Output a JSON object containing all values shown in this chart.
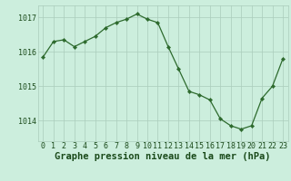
{
  "hours": [
    0,
    1,
    2,
    3,
    4,
    5,
    6,
    7,
    8,
    9,
    10,
    11,
    12,
    13,
    14,
    15,
    16,
    17,
    18,
    19,
    20,
    21,
    22,
    23
  ],
  "pressure": [
    1015.85,
    1016.3,
    1016.35,
    1016.15,
    1016.3,
    1016.45,
    1016.7,
    1016.85,
    1016.95,
    1017.1,
    1016.95,
    1016.85,
    1016.15,
    1015.5,
    1014.85,
    1014.75,
    1014.6,
    1014.05,
    1013.85,
    1013.75,
    1013.85,
    1014.65,
    1015.0,
    1015.8
  ],
  "line_color": "#2d6a2d",
  "marker_color": "#2d6a2d",
  "bg_color": "#cceedd",
  "grid_color": "#aaccbb",
  "xlabel": "Graphe pression niveau de la mer (hPa)",
  "xlabel_color": "#1a4a1a",
  "tick_color": "#1a4a1a",
  "ylim": [
    1013.4,
    1017.35
  ],
  "yticks": [
    1014,
    1015,
    1016,
    1017
  ],
  "xticks": [
    0,
    1,
    2,
    3,
    4,
    5,
    6,
    7,
    8,
    9,
    10,
    11,
    12,
    13,
    14,
    15,
    16,
    17,
    18,
    19,
    20,
    21,
    22,
    23
  ],
  "tick_fontsize": 6.0,
  "xlabel_fontsize": 7.5
}
